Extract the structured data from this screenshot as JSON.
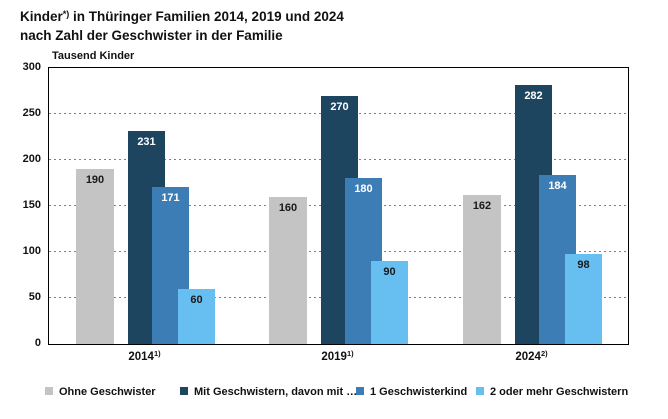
{
  "header": {
    "title_line1_prefix": "Kinder",
    "title_sup": "*)",
    "title_line1_rest": " in Thüringer Familien 2014, 2019 und 2024",
    "title_line2": "nach Zahl der Geschwister in der Familie"
  },
  "chart_data": {
    "type": "bar",
    "unit_label": "Tausend Kinder",
    "categories": [
      "2014",
      "2019",
      "2024"
    ],
    "category_sups": [
      "1)",
      "1)",
      "2)"
    ],
    "series": [
      {
        "name": "Ohne Geschwister",
        "color": "#c4c4c4",
        "label_color": "#1a1a1a",
        "values": [
          190,
          160,
          162
        ]
      },
      {
        "name": "Mit Geschwistern, davon mit …",
        "color": "#1d455f",
        "label_color": "#ffffff",
        "values": [
          231,
          270,
          282
        ]
      },
      {
        "name": "1 Geschwisterkind",
        "color": "#3d7db6",
        "label_color": "#ffffff",
        "values": [
          171,
          180,
          184
        ]
      },
      {
        "name": "2 oder mehr Geschwistern",
        "color": "#67bef1",
        "label_color": "#1a1a1a",
        "values": [
          60,
          90,
          98
        ]
      }
    ],
    "ylim": [
      0,
      300
    ],
    "yticks": [
      0,
      50,
      100,
      150,
      200,
      250,
      300
    ],
    "grid": "dashed horizontal, boxed axes",
    "legend_position": "bottom",
    "colors": {
      "axis": "#000000",
      "grid": "#808080",
      "text": "#1a1a1a"
    }
  }
}
